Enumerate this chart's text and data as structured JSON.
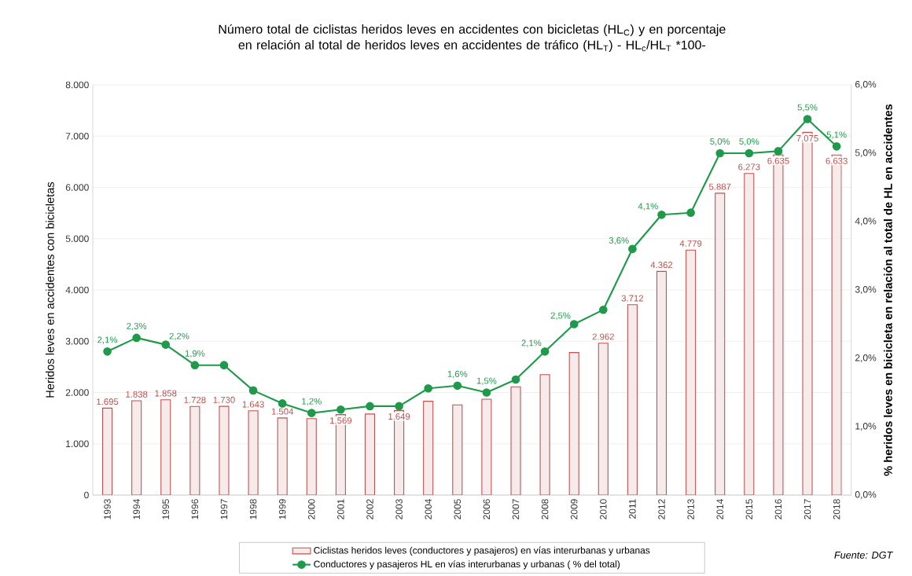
{
  "chart_data": {
    "type": "bar",
    "title": "Número total de ciclistas heridos leves en accidentes con bicicletas (HL$_{C}$) y en porcentaje en relación al total de heridos leves en accidentes de tráfico (HL$_{T}$) - HL$_{c}$/HL$_{T}$ *100-",
    "categories": [
      "1993",
      "1994",
      "1995",
      "1996",
      "1997",
      "1998",
      "1999",
      "2000",
      "2001",
      "2002",
      "2003",
      "2004",
      "2005",
      "2006",
      "2007",
      "2008",
      "2009",
      "2010",
      "2011",
      "2012",
      "2013",
      "2014",
      "2015",
      "2016",
      "2017",
      "2018"
    ],
    "series": [
      {
        "name": "Ciclistas heridos leves (conductores y pasajeros) en vías interurbanas y urbanas",
        "type": "bar",
        "color": "#c0504d",
        "values": [
          1695,
          1838,
          1858,
          1728,
          1730,
          1643,
          1504,
          1490,
          1569,
          1580,
          1649,
          1830,
          1760,
          1870,
          2110,
          2350,
          2780,
          2962,
          3712,
          4362,
          4779,
          5887,
          6273,
          6635,
          7075,
          6633
        ],
        "value_labels": [
          "1.695",
          "1.838",
          "1.858",
          "1.728",
          "1.730",
          "1.643",
          "1.504",
          null,
          "1.569",
          null,
          "1.649",
          null,
          null,
          null,
          null,
          null,
          null,
          "2.962",
          "3.712",
          "4.362",
          "4.779",
          "5.887",
          "6.273",
          "6.635",
          "7.075",
          "6.633"
        ]
      },
      {
        "name": "Conductores y pasajeros HL en vías interurbanas y urbanas ( % del total)",
        "type": "line",
        "axis": "y2",
        "marker": "circle",
        "color": "#1f9a4a",
        "values": [
          2.1,
          2.3,
          2.2,
          1.9,
          1.9,
          1.53,
          1.34,
          1.2,
          1.25,
          1.3,
          1.3,
          1.56,
          1.6,
          1.5,
          1.69,
          2.1,
          2.5,
          2.71,
          3.6,
          4.1,
          4.13,
          5.0,
          5.0,
          5.03,
          5.5,
          5.1
        ],
        "value_labels": [
          "2,1%",
          "2,3%",
          "2,2%",
          "1,9%",
          null,
          null,
          null,
          "1,2%",
          null,
          null,
          null,
          null,
          "1,6%",
          "1,5%",
          null,
          "2,1%",
          "2,5%",
          null,
          "3,6%",
          "4,1%",
          null,
          "5,0%",
          "5,0%",
          null,
          "5,5%",
          "5,1%"
        ]
      }
    ],
    "ylabel": "Heridos leves en accidentes con bicicletas",
    "y2label": "% heridos leves en bicicleta en relación al total de HL en accidentes",
    "ylim": [
      0,
      8000
    ],
    "yticks": [
      0,
      {
        "value": 1000,
        "label": "1.000"
      },
      {
        "value": 2000,
        "label": "2.000"
      },
      {
        "value": 3000,
        "label": "3.000"
      },
      {
        "value": 4000,
        "label": "4.000"
      },
      {
        "value": 5000,
        "label": "5.000"
      },
      {
        "value": 6000,
        "label": "6.000"
      },
      {
        "value": 7000,
        "label": "7.000"
      },
      {
        "value": 8000,
        "label": "8.000"
      }
    ],
    "y2lim": [
      0,
      6
    ],
    "y2ticks": [
      {
        "value": 0,
        "label": "0,0%"
      },
      {
        "value": 1,
        "label": "1,0%"
      },
      {
        "value": 2,
        "label": "2,0%"
      },
      {
        "value": 3,
        "label": "3,0%"
      },
      {
        "value": 4,
        "label": "4,0%"
      },
      {
        "value": 5,
        "label": "5,0%"
      },
      {
        "value": 6,
        "label": "6,0%"
      }
    ],
    "grid": "y",
    "legend": "bottom",
    "annotations": [
      "Fuente: DGT"
    ]
  }
}
